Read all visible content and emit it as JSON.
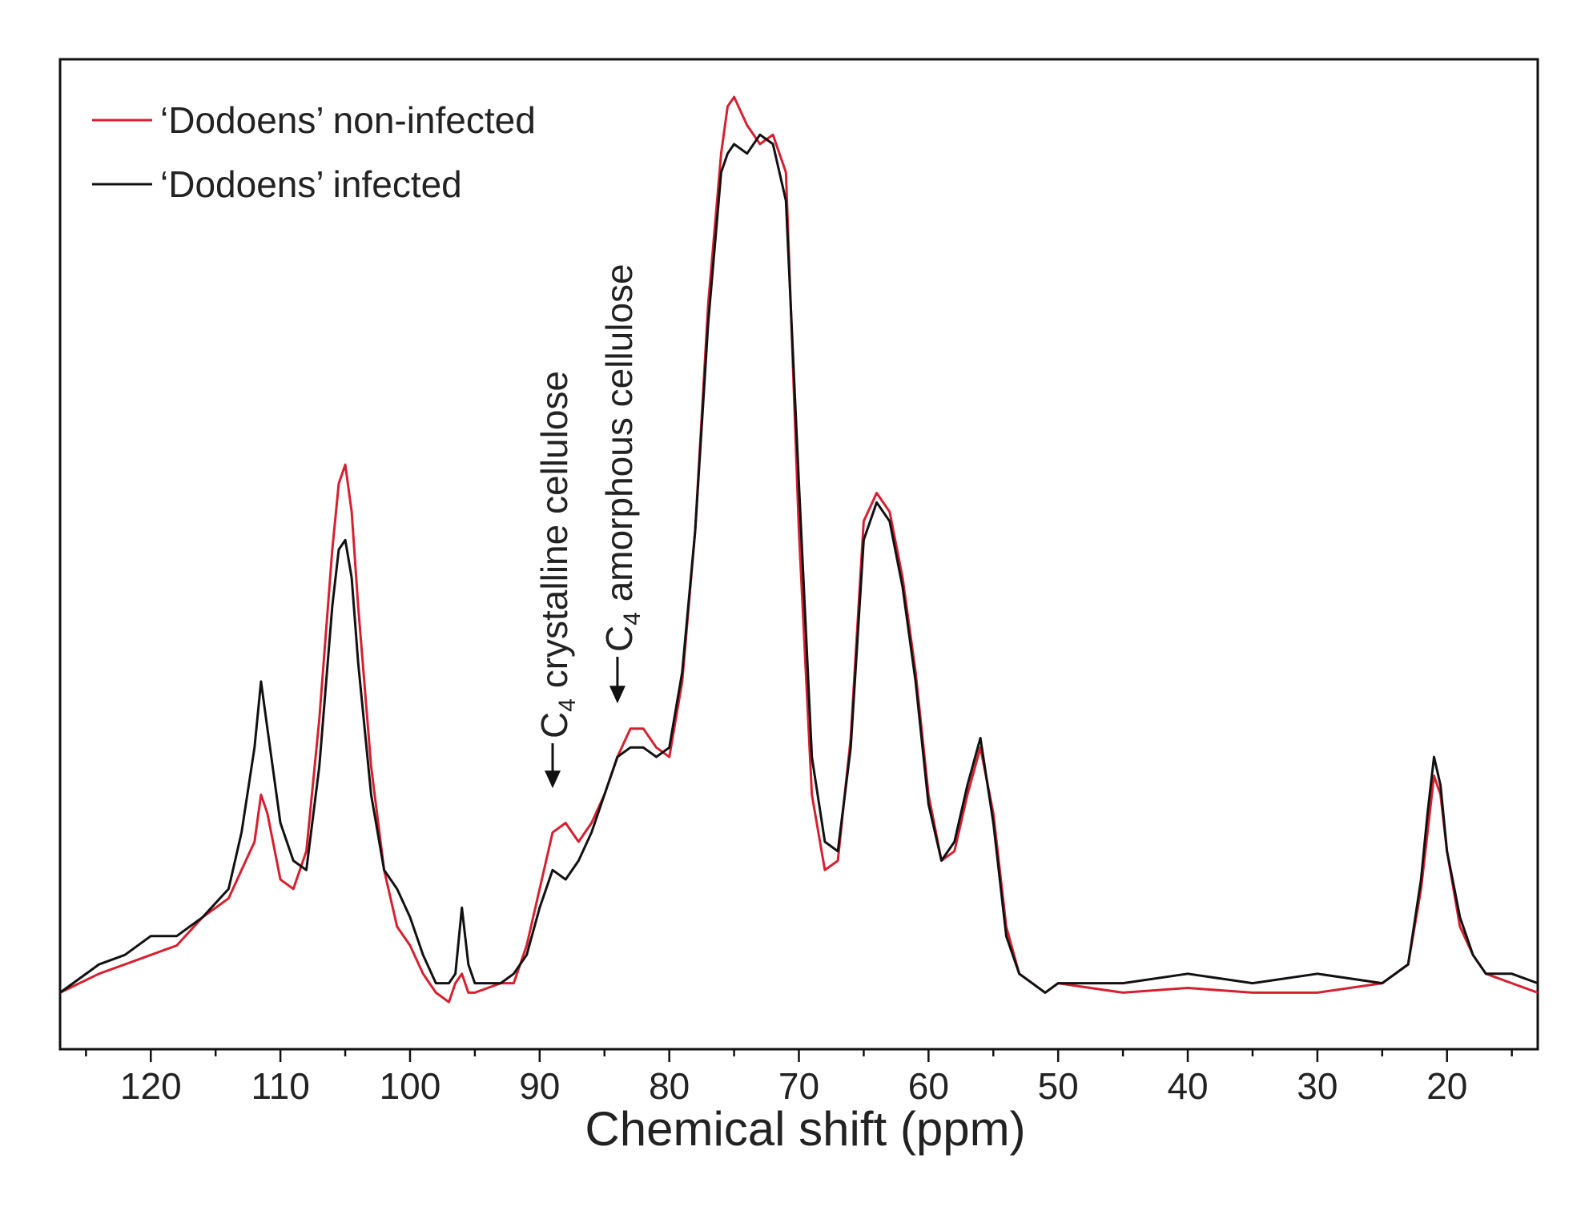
{
  "chart_data": {
    "type": "line",
    "title": "",
    "xlabel": "Chemical shift (ppm)",
    "ylabel": "",
    "xlim": [
      127,
      13
    ],
    "ylim": [
      -5,
      100
    ],
    "x_reversed": true,
    "grid": false,
    "legend_position": "top-left",
    "xticks": [
      120,
      110,
      100,
      90,
      80,
      70,
      60,
      50,
      40,
      30,
      20
    ],
    "xtick_labels": [
      "120",
      "110",
      "100",
      "90",
      "80",
      "70",
      "60",
      "50",
      "40",
      "30",
      "20"
    ],
    "series": [
      {
        "name": "‘Dodoens’ non-infected",
        "color": "#d62030",
        "x": [
          127,
          124,
          122,
          120,
          118,
          116,
          114,
          113,
          112,
          111.5,
          111,
          110,
          109,
          108,
          107,
          106,
          105.5,
          105,
          104.5,
          104,
          103,
          102,
          101,
          100,
          99,
          98,
          97,
          96.5,
          96,
          95.5,
          95,
          94,
          93,
          92,
          91,
          90,
          89,
          88,
          87,
          86,
          85,
          84,
          83,
          82,
          81,
          80,
          79,
          78,
          77,
          76,
          75.5,
          75,
          74,
          73,
          72,
          71,
          70,
          69,
          68,
          67,
          66,
          65,
          64,
          63,
          62,
          61,
          60,
          59,
          58,
          57,
          56,
          55,
          54,
          53,
          52,
          51,
          50,
          45,
          40,
          35,
          30,
          25,
          23,
          22,
          21.5,
          21,
          20.5,
          20,
          19,
          18,
          17,
          15,
          13
        ],
        "y": [
          1,
          3,
          4,
          5,
          6,
          9,
          11,
          14,
          17,
          22,
          20,
          13,
          12,
          16,
          30,
          48,
          55,
          57,
          52,
          42,
          25,
          14,
          8,
          6,
          3,
          1,
          0,
          2,
          3,
          1,
          1,
          1.5,
          2,
          2,
          6,
          12,
          18,
          19,
          17,
          19,
          22,
          26,
          29,
          29,
          27,
          26,
          34,
          50,
          74,
          90,
          95,
          96,
          93,
          91,
          92,
          88,
          50,
          22,
          14,
          15,
          28,
          51,
          54,
          52,
          45,
          35,
          22,
          15,
          16,
          22,
          27,
          20,
          8,
          3,
          2,
          1,
          2,
          1,
          1.5,
          1,
          1,
          2,
          4,
          12,
          18,
          24,
          22,
          16,
          8,
          5,
          3,
          2,
          1
        ]
      },
      {
        "name": "‘Dodoens’ infected",
        "color": "#111111",
        "x": [
          127,
          124,
          122,
          120,
          118,
          116,
          114,
          113,
          112,
          111.5,
          111,
          110,
          109,
          108,
          107,
          106,
          105.5,
          105,
          104.5,
          104,
          103,
          102,
          101,
          100,
          99,
          98,
          97,
          96.5,
          96,
          95.5,
          95,
          94,
          93,
          92,
          91,
          90,
          89,
          88,
          87,
          86,
          85,
          84,
          83,
          82,
          81,
          80,
          79,
          78,
          77,
          76,
          75.5,
          75,
          74,
          73,
          72,
          71,
          70,
          69,
          68,
          67,
          66,
          65,
          64,
          63,
          62,
          61,
          60,
          59,
          58,
          57,
          56,
          55,
          54,
          53,
          52,
          51,
          50,
          45,
          40,
          35,
          30,
          25,
          23,
          22,
          21.5,
          21,
          20.5,
          20,
          19,
          18,
          17,
          15,
          13
        ],
        "y": [
          1,
          4,
          5,
          7,
          7,
          9,
          12,
          18,
          27,
          34,
          29,
          19,
          15,
          14,
          25,
          42,
          48,
          49,
          45,
          36,
          22,
          14,
          12,
          9,
          5,
          2,
          2,
          3,
          10,
          4,
          2,
          2,
          2,
          3,
          5,
          10,
          14,
          13,
          15,
          18,
          22,
          26,
          27,
          27,
          26,
          27,
          35,
          50,
          72,
          88,
          90,
          91,
          90,
          92,
          91,
          85,
          55,
          26,
          17,
          16,
          27,
          49,
          53,
          51,
          44,
          34,
          21,
          15,
          17,
          23,
          28,
          19,
          7,
          3,
          2,
          1,
          2,
          2,
          3,
          2,
          3,
          2,
          4,
          13,
          20,
          26,
          23,
          16,
          9,
          5,
          3,
          3,
          2
        ]
      }
    ],
    "annotations": [
      {
        "label_main": "C",
        "label_sub": "4",
        "label_rest": " crystalline cellulose",
        "x": 89,
        "y_tip": 22
      },
      {
        "label_main": "C",
        "label_sub": "4",
        "label_rest": " amorphous cellulose",
        "x": 84,
        "y_tip": 31
      }
    ]
  }
}
